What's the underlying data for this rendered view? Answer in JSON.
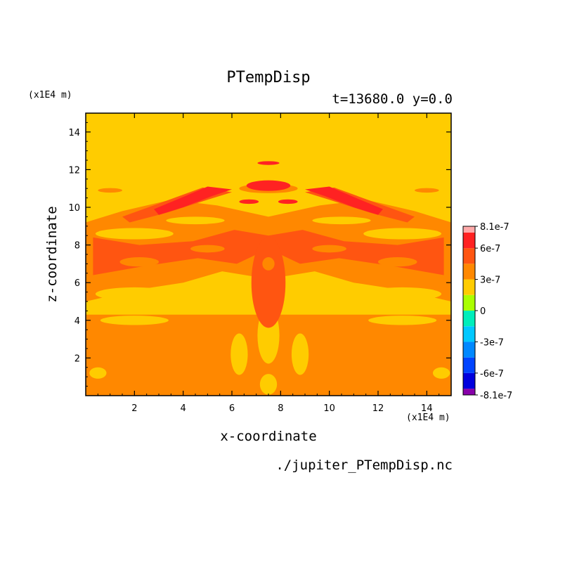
{
  "chart_data": {
    "type": "heatmap",
    "title": "PTempDisp",
    "subtitle": "t=13680.0 y=0.0",
    "xlabel": "x-coordinate",
    "ylabel": "z-coordinate",
    "x_scale_label": "(x1E4 m)",
    "y_scale_label": "(x1E4 m)",
    "source_file": "./jupiter_PTempDisp.nc",
    "xlim": [
      0.0,
      15.0
    ],
    "ylim": [
      0.0,
      15.0
    ],
    "x_ticks": [
      2,
      4,
      6,
      8,
      10,
      12,
      14
    ],
    "y_ticks": [
      2,
      4,
      6,
      8,
      10,
      12,
      14
    ],
    "colorbar": {
      "range": [
        -8.1e-07,
        8.1e-07
      ],
      "tick_labels": [
        "8.1e-7",
        "6e-7",
        "3e-7",
        "0",
        "-3e-7",
        "-6e-7",
        "-8.1e-7"
      ],
      "tick_values": [
        8.1e-07,
        6e-07,
        3e-07,
        0,
        -3e-07,
        -6e-07,
        -8.1e-07
      ],
      "levels": [
        {
          "min": -8.1e-07,
          "max": -7.5e-07,
          "color": "#8800aa"
        },
        {
          "min": -7.5e-07,
          "max": -6e-07,
          "color": "#0000dd"
        },
        {
          "min": -6e-07,
          "max": -4.5e-07,
          "color": "#0044ff"
        },
        {
          "min": -4.5e-07,
          "max": -3e-07,
          "color": "#0088ff"
        },
        {
          "min": -3e-07,
          "max": -1.5e-07,
          "color": "#00c8ff"
        },
        {
          "min": -1.5e-07,
          "max": 0,
          "color": "#00eebb"
        },
        {
          "min": 0,
          "max": 1.5e-07,
          "color": "#aaff00"
        },
        {
          "min": 1.5e-07,
          "max": 3e-07,
          "color": "#ffcc00"
        },
        {
          "min": 3e-07,
          "max": 4.5e-07,
          "color": "#ff8800"
        },
        {
          "min": 4.5e-07,
          "max": 6e-07,
          "color": "#ff5511"
        },
        {
          "min": 6e-07,
          "max": 7.5e-07,
          "color": "#ff2222"
        },
        {
          "min": 7.5e-07,
          "max": 8.1e-07,
          "color": "#ffaaaa"
        }
      ]
    },
    "field_regions": [
      {
        "level": 7,
        "shape": "rect",
        "x": [
          0.0,
          15.0
        ],
        "z": [
          0.0,
          15.0
        ]
      },
      {
        "level": 8,
        "shape": "rect",
        "x": [
          0.0,
          15.0
        ],
        "z": [
          0.0,
          4.3
        ]
      },
      {
        "level": 7,
        "shape": "ellipse",
        "cx": 2.0,
        "cz": 4.0,
        "rx": 1.4,
        "rz": 0.25
      },
      {
        "level": 7,
        "shape": "ellipse",
        "cx": 13.0,
        "cz": 4.0,
        "rx": 1.4,
        "rz": 0.25
      },
      {
        "level": 7,
        "shape": "ellipse",
        "cx": 7.5,
        "cz": 3.2,
        "rx": 0.45,
        "rz": 1.5
      },
      {
        "level": 7,
        "shape": "ellipse",
        "cx": 6.3,
        "cz": 2.2,
        "rx": 0.35,
        "rz": 1.1
      },
      {
        "level": 7,
        "shape": "ellipse",
        "cx": 8.8,
        "cz": 2.2,
        "rx": 0.35,
        "rz": 1.1
      },
      {
        "level": 7,
        "shape": "ellipse",
        "cx": 0.5,
        "cz": 1.2,
        "rx": 0.35,
        "rz": 0.3
      },
      {
        "level": 7,
        "shape": "ellipse",
        "cx": 14.6,
        "cz": 1.2,
        "rx": 0.35,
        "rz": 0.3
      },
      {
        "level": 7,
        "shape": "ellipse",
        "cx": 7.5,
        "cz": 0.6,
        "rx": 0.35,
        "rz": 0.55
      },
      {
        "level": 8,
        "shape": "poly",
        "pts": [
          [
            0,
            5.0
          ],
          [
            2.0,
            5.6
          ],
          [
            4.0,
            6.0
          ],
          [
            5.6,
            6.6
          ],
          [
            7.5,
            6.2
          ],
          [
            9.4,
            6.6
          ],
          [
            11,
            6.0
          ],
          [
            13,
            5.6
          ],
          [
            15,
            5.0
          ],
          [
            15,
            9.2
          ],
          [
            13.5,
            9.8
          ],
          [
            11.5,
            10.4
          ],
          [
            9.6,
            10.1
          ],
          [
            7.5,
            9.5
          ],
          [
            5.4,
            10.1
          ],
          [
            3.5,
            10.4
          ],
          [
            1.5,
            9.8
          ],
          [
            0,
            9.2
          ]
        ]
      },
      {
        "level": 7,
        "shape": "ellipse",
        "cx": 2.0,
        "cz": 5.4,
        "rx": 1.6,
        "rz": 0.35
      },
      {
        "level": 7,
        "shape": "ellipse",
        "cx": 13.0,
        "cz": 5.4,
        "rx": 1.6,
        "rz": 0.35
      },
      {
        "level": 7,
        "shape": "ellipse",
        "cx": 2.0,
        "cz": 8.6,
        "rx": 1.6,
        "rz": 0.3
      },
      {
        "level": 7,
        "shape": "ellipse",
        "cx": 13.0,
        "cz": 8.6,
        "rx": 1.6,
        "rz": 0.3
      },
      {
        "level": 7,
        "shape": "ellipse",
        "cx": 4.5,
        "cz": 9.3,
        "rx": 1.2,
        "rz": 0.2
      },
      {
        "level": 7,
        "shape": "ellipse",
        "cx": 10.5,
        "cz": 9.3,
        "rx": 1.2,
        "rz": 0.2
      },
      {
        "level": 9,
        "shape": "poly",
        "pts": [
          [
            0.3,
            6.4
          ],
          [
            2.5,
            6.9
          ],
          [
            4.6,
            7.3
          ],
          [
            6.2,
            7.0
          ],
          [
            7.5,
            7.8
          ],
          [
            8.8,
            7.0
          ],
          [
            10.4,
            7.3
          ],
          [
            12.5,
            6.9
          ],
          [
            14.7,
            6.4
          ],
          [
            14.7,
            8.4
          ],
          [
            12.8,
            8.0
          ],
          [
            10.6,
            8.2
          ],
          [
            8.9,
            8.8
          ],
          [
            7.5,
            8.5
          ],
          [
            6.1,
            8.8
          ],
          [
            4.4,
            8.2
          ],
          [
            2.2,
            8.0
          ],
          [
            0.3,
            8.4
          ]
        ]
      },
      {
        "level": 9,
        "shape": "ellipse",
        "cx": 7.5,
        "cz": 6.0,
        "rx": 0.7,
        "rz": 2.4
      },
      {
        "level": 8,
        "shape": "ellipse",
        "cx": 2.2,
        "cz": 7.1,
        "rx": 0.8,
        "rz": 0.25
      },
      {
        "level": 8,
        "shape": "ellipse",
        "cx": 12.8,
        "cz": 7.1,
        "rx": 0.8,
        "rz": 0.25
      },
      {
        "level": 8,
        "shape": "ellipse",
        "cx": 5.0,
        "cz": 7.8,
        "rx": 0.7,
        "rz": 0.2
      },
      {
        "level": 8,
        "shape": "ellipse",
        "cx": 10.0,
        "cz": 7.8,
        "rx": 0.7,
        "rz": 0.2
      },
      {
        "level": 8,
        "shape": "ellipse",
        "cx": 7.5,
        "cz": 7.0,
        "rx": 0.25,
        "rz": 0.35
      },
      {
        "level": 8,
        "shape": "ellipse",
        "cx": 1.0,
        "cz": 10.9,
        "rx": 0.5,
        "rz": 0.12
      },
      {
        "level": 8,
        "shape": "ellipse",
        "cx": 14.0,
        "cz": 10.9,
        "rx": 0.5,
        "rz": 0.12
      },
      {
        "level": 8,
        "shape": "ellipse",
        "cx": 7.5,
        "cz": 11.0,
        "rx": 1.2,
        "rz": 0.25
      },
      {
        "level": 9,
        "shape": "poly",
        "pts": [
          [
            1.5,
            9.5
          ],
          [
            3.0,
            10.2
          ],
          [
            4.8,
            11.05
          ],
          [
            6.0,
            10.8
          ],
          [
            5.0,
            10.4
          ],
          [
            3.3,
            9.7
          ],
          [
            1.8,
            9.2
          ]
        ]
      },
      {
        "level": 9,
        "shape": "poly",
        "pts": [
          [
            13.5,
            9.5
          ],
          [
            12.0,
            10.2
          ],
          [
            10.2,
            11.05
          ],
          [
            9.0,
            10.8
          ],
          [
            10.0,
            10.4
          ],
          [
            11.7,
            9.7
          ],
          [
            13.2,
            9.2
          ]
        ]
      },
      {
        "level": 10,
        "shape": "poly",
        "pts": [
          [
            2.8,
            9.9
          ],
          [
            4.0,
            10.55
          ],
          [
            5.0,
            11.1
          ],
          [
            6.0,
            10.95
          ],
          [
            5.2,
            10.6
          ],
          [
            4.0,
            10.0
          ],
          [
            3.0,
            9.6
          ]
        ]
      },
      {
        "level": 10,
        "shape": "poly",
        "pts": [
          [
            12.2,
            9.9
          ],
          [
            11.0,
            10.55
          ],
          [
            10.0,
            11.1
          ],
          [
            9.0,
            10.95
          ],
          [
            9.8,
            10.6
          ],
          [
            11.0,
            10.0
          ],
          [
            12.0,
            9.6
          ]
        ]
      },
      {
        "level": 10,
        "shape": "ellipse",
        "cx": 7.5,
        "cz": 11.15,
        "rx": 0.9,
        "rz": 0.28
      },
      {
        "level": 10,
        "shape": "ellipse",
        "cx": 7.5,
        "cz": 12.35,
        "rx": 0.45,
        "rz": 0.1
      },
      {
        "level": 10,
        "shape": "ellipse",
        "cx": 6.7,
        "cz": 10.3,
        "rx": 0.4,
        "rz": 0.12
      },
      {
        "level": 10,
        "shape": "ellipse",
        "cx": 8.3,
        "cz": 10.3,
        "rx": 0.4,
        "rz": 0.12
      }
    ]
  }
}
